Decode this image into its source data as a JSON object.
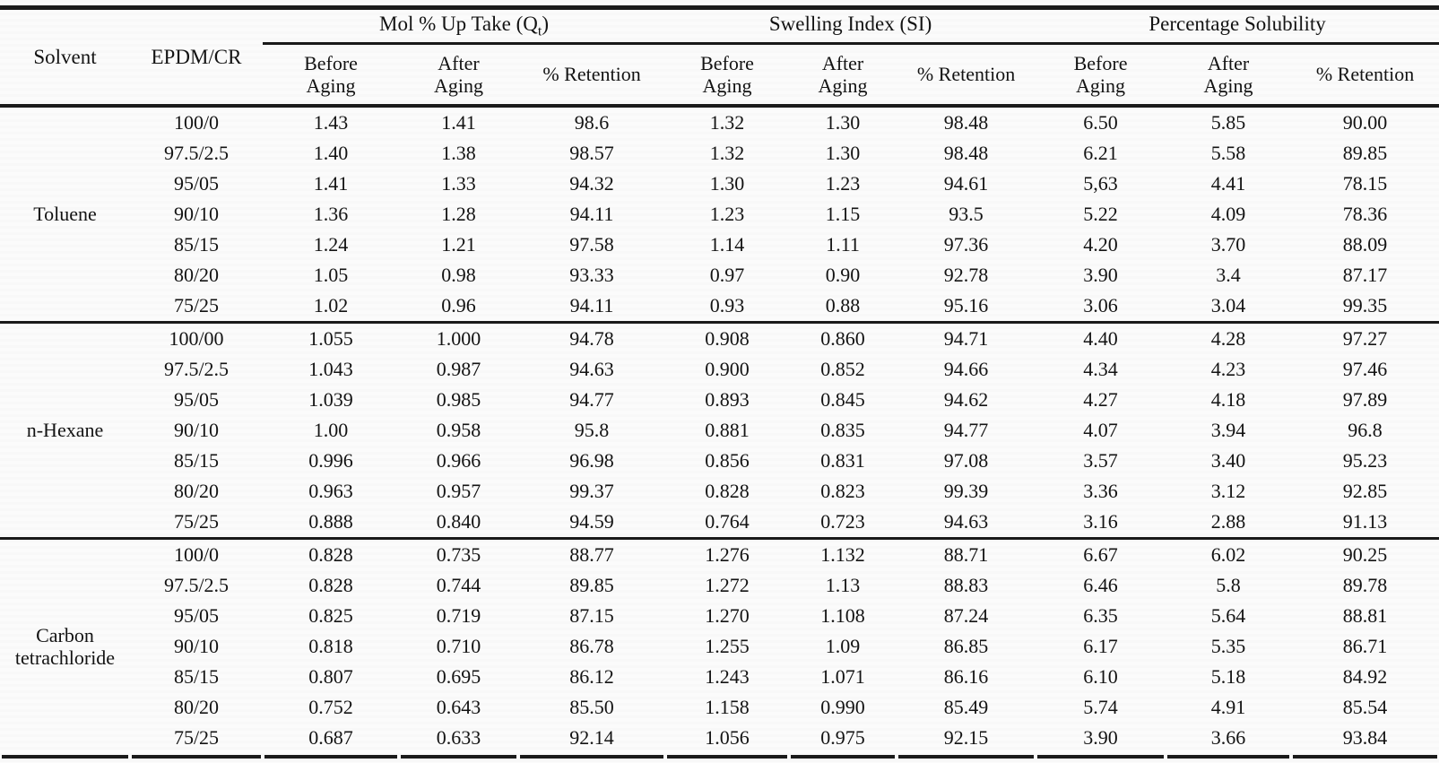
{
  "header": {
    "solvent": "Solvent",
    "blend": "EPDM/CR",
    "groups": [
      {
        "prefix": "Mol % Up Take (Q",
        "sub": "t",
        "suffix": ")"
      },
      {
        "prefix": "Swelling Index (SI)",
        "sub": "",
        "suffix": ""
      },
      {
        "prefix": "Percentage Solubility",
        "sub": "",
        "suffix": ""
      }
    ],
    "subheaders": [
      "Before\nAging",
      "After\nAging",
      "% Retention"
    ]
  },
  "sections": [
    {
      "solvent": "Toluene",
      "rows": [
        {
          "blend": "100/0",
          "values": [
            "1.43",
            "1.41",
            "98.6",
            "1.32",
            "1.30",
            "98.48",
            "6.50",
            "5.85",
            "90.00"
          ]
        },
        {
          "blend": "97.5/2.5",
          "values": [
            "1.40",
            "1.38",
            "98.57",
            "1.32",
            "1.30",
            "98.48",
            "6.21",
            "5.58",
            "89.85"
          ]
        },
        {
          "blend": "95/05",
          "values": [
            "1.41",
            "1.33",
            "94.32",
            "1.30",
            "1.23",
            "94.61",
            "5,63",
            "4.41",
            "78.15"
          ]
        },
        {
          "blend": "90/10",
          "values": [
            "1.36",
            "1.28",
            "94.11",
            "1.23",
            "1.15",
            "93.5",
            "5.22",
            "4.09",
            "78.36"
          ]
        },
        {
          "blend": "85/15",
          "values": [
            "1.24",
            "1.21",
            "97.58",
            "1.14",
            "1.11",
            "97.36",
            "4.20",
            "3.70",
            "88.09"
          ]
        },
        {
          "blend": "80/20",
          "values": [
            "1.05",
            "0.98",
            "93.33",
            "0.97",
            "0.90",
            "92.78",
            "3.90",
            "3.4",
            "87.17"
          ]
        },
        {
          "blend": "75/25",
          "values": [
            "1.02",
            "0.96",
            "94.11",
            "0.93",
            "0.88",
            "95.16",
            "3.06",
            "3.04",
            "99.35"
          ]
        }
      ]
    },
    {
      "solvent": "n-Hexane",
      "rows": [
        {
          "blend": "100/00",
          "values": [
            "1.055",
            "1.000",
            "94.78",
            "0.908",
            "0.860",
            "94.71",
            "4.40",
            "4.28",
            "97.27"
          ]
        },
        {
          "blend": "97.5/2.5",
          "values": [
            "1.043",
            "0.987",
            "94.63",
            "0.900",
            "0.852",
            "94.66",
            "4.34",
            "4.23",
            "97.46"
          ]
        },
        {
          "blend": "95/05",
          "values": [
            "1.039",
            "0.985",
            "94.77",
            "0.893",
            "0.845",
            "94.62",
            "4.27",
            "4.18",
            "97.89"
          ]
        },
        {
          "blend": "90/10",
          "values": [
            "1.00",
            "0.958",
            "95.8",
            "0.881",
            "0.835",
            "94.77",
            "4.07",
            "3.94",
            "96.8"
          ]
        },
        {
          "blend": "85/15",
          "values": [
            "0.996",
            "0.966",
            "96.98",
            "0.856",
            "0.831",
            "97.08",
            "3.57",
            "3.40",
            "95.23"
          ]
        },
        {
          "blend": "80/20",
          "values": [
            "0.963",
            "0.957",
            "99.37",
            "0.828",
            "0.823",
            "99.39",
            "3.36",
            "3.12",
            "92.85"
          ]
        },
        {
          "blend": "75/25",
          "values": [
            "0.888",
            "0.840",
            "94.59",
            "0.764",
            "0.723",
            "94.63",
            "3.16",
            "2.88",
            "91.13"
          ]
        }
      ]
    },
    {
      "solvent": "Carbon tetrachloride",
      "rows": [
        {
          "blend": "100/0",
          "values": [
            "0.828",
            "0.735",
            "88.77",
            "1.276",
            "1.132",
            "88.71",
            "6.67",
            "6.02",
            "90.25"
          ]
        },
        {
          "blend": "97.5/2.5",
          "values": [
            "0.828",
            "0.744",
            "89.85",
            "1.272",
            "1.13",
            "88.83",
            "6.46",
            "5.8",
            "89.78"
          ]
        },
        {
          "blend": "95/05",
          "values": [
            "0.825",
            "0.719",
            "87.15",
            "1.270",
            "1.108",
            "87.24",
            "6.35",
            "5.64",
            "88.81"
          ]
        },
        {
          "blend": "90/10",
          "values": [
            "0.818",
            "0.710",
            "86.78",
            "1.255",
            "1.09",
            "86.85",
            "6.17",
            "5.35",
            "86.71"
          ]
        },
        {
          "blend": "85/15",
          "values": [
            "0.807",
            "0.695",
            "86.12",
            "1.243",
            "1.071",
            "86.16",
            "6.10",
            "5.18",
            "84.92"
          ]
        },
        {
          "blend": "80/20",
          "values": [
            "0.752",
            "0.643",
            "85.50",
            "1.158",
            "0.990",
            "85.49",
            "5.74",
            "4.91",
            "85.54"
          ]
        },
        {
          "blend": "75/25",
          "values": [
            "0.687",
            "0.633",
            "92.14",
            "1.056",
            "0.975",
            "92.15",
            "3.90",
            "3.66",
            "93.84"
          ]
        }
      ]
    }
  ],
  "colors": {
    "text": "#131313",
    "rule": "#1a1a1a",
    "background": "#fbfbfb"
  }
}
